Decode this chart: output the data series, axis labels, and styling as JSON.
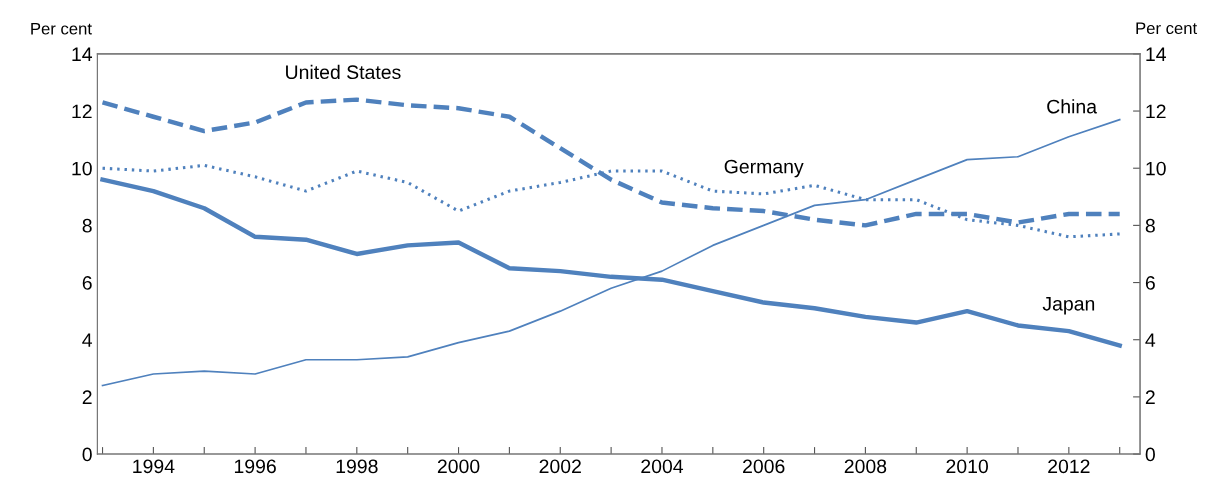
{
  "chart_data": {
    "type": "line",
    "ylabel": "Per cent",
    "y2label": "Per cent",
    "x": [
      1993,
      1994,
      1995,
      1996,
      1997,
      1998,
      1999,
      2000,
      2001,
      2002,
      2003,
      2004,
      2005,
      2006,
      2007,
      2008,
      2009,
      2010,
      2011,
      2012,
      2013
    ],
    "xlim": [
      1992.9,
      2013.4
    ],
    "xticks": [
      {
        "value": 1993,
        "label": null
      },
      1994,
      {
        "value": 1995,
        "label": null
      },
      1996,
      {
        "value": 1997,
        "label": null
      },
      1998,
      {
        "value": 1999,
        "label": null
      },
      2000,
      {
        "value": 2001,
        "label": null
      },
      2002,
      {
        "value": 2003,
        "label": null
      },
      2004,
      {
        "value": 2005,
        "label": null
      },
      2006,
      {
        "value": 2007,
        "label": null
      },
      2008,
      {
        "value": 2009,
        "label": null
      },
      2010,
      {
        "value": 2011,
        "label": null
      },
      2012,
      {
        "value": 2013,
        "label": null
      }
    ],
    "ylim": [
      0,
      14
    ],
    "yticks": [
      0,
      2,
      4,
      6,
      8,
      10,
      12,
      14
    ],
    "y2lim": [
      0,
      14
    ],
    "y2ticks": [
      0,
      2,
      4,
      6,
      8,
      10,
      12,
      14
    ],
    "grid": false,
    "legend": false,
    "marker": "none",
    "series": [
      {
        "name": "United States",
        "color": "#4f81bd",
        "line_style": "dashed",
        "values": [
          12.3,
          11.8,
          11.3,
          11.6,
          12.3,
          12.4,
          12.2,
          12.1,
          11.8,
          10.7,
          9.6,
          8.8,
          8.6,
          8.5,
          8.2,
          8.0,
          8.4,
          8.4,
          8.1,
          8.4,
          8.4
        ]
      },
      {
        "name": "Germany",
        "color": "#4f81bd",
        "line_style": "dotted",
        "values": [
          10.0,
          9.9,
          10.1,
          9.7,
          9.2,
          9.9,
          9.5,
          8.5,
          9.2,
          9.5,
          9.9,
          9.9,
          9.2,
          9.1,
          9.4,
          8.9,
          8.9,
          8.2,
          8.0,
          7.6,
          7.7
        ]
      },
      {
        "name": "China",
        "color": "#4f81bd",
        "line_style": "solid",
        "values": [
          2.4,
          2.8,
          2.9,
          2.8,
          3.3,
          3.3,
          3.4,
          3.9,
          4.3,
          5.0,
          5.8,
          6.4,
          7.3,
          8.0,
          8.7,
          8.9,
          9.6,
          10.3,
          10.4,
          11.1,
          11.7
        ]
      },
      {
        "name": "Japan",
        "color": "#4f81bd",
        "line_style": "solid",
        "values": [
          9.6,
          9.2,
          8.6,
          7.6,
          7.5,
          7.0,
          7.3,
          7.4,
          6.5,
          6.4,
          6.2,
          6.1,
          5.7,
          5.3,
          5.1,
          4.8,
          4.6,
          5.0,
          4.5,
          4.3,
          3.8
        ]
      }
    ]
  }
}
